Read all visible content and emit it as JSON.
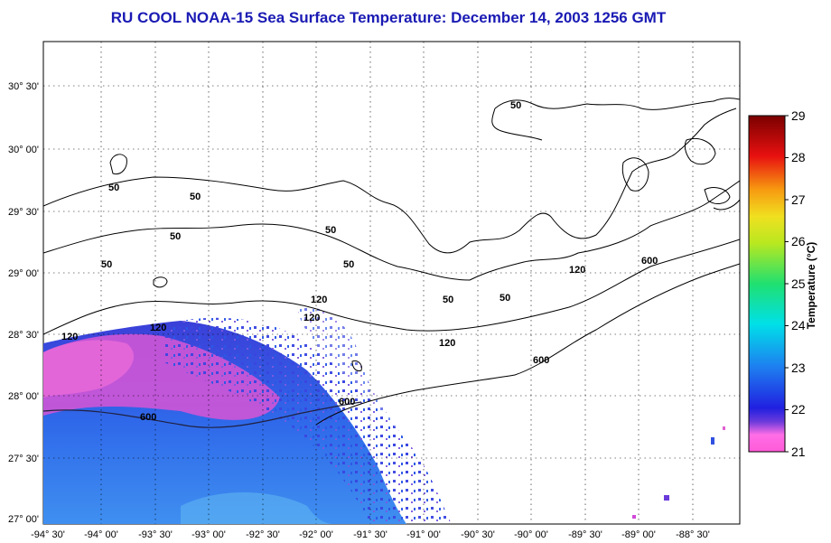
{
  "title": "RU COOL  NOAA-15  Sea Surface Temperature:  December 14, 2003 1256 GMT",
  "lon_labels": [
    "-94° 30'",
    "-94° 00'",
    "-93° 30'",
    "-93° 00'",
    "-92° 30'",
    "-92° 00'",
    "-91° 30'",
    "-91° 00'",
    "-90° 30'",
    "-90° 00'",
    "-89° 30'",
    "-89° 00'",
    "-88° 30'"
  ],
  "lat_labels": [
    "30° 30'",
    "30° 00'",
    "29° 30'",
    "29° 00'",
    "28° 30'",
    "28° 00'",
    "27° 30'",
    "27° 00'"
  ],
  "contour_labels": [
    "50",
    "50",
    "50",
    "50",
    "50",
    "50",
    "50",
    "50",
    "120",
    "120",
    "120",
    "120",
    "120",
    "120",
    "600",
    "600",
    "600",
    "600",
    "50"
  ],
  "colorbar": {
    "title": "Temperature (°C)",
    "ticks": [
      "29",
      "28",
      "27",
      "26",
      "25",
      "24",
      "23",
      "22",
      "21"
    ]
  }
}
